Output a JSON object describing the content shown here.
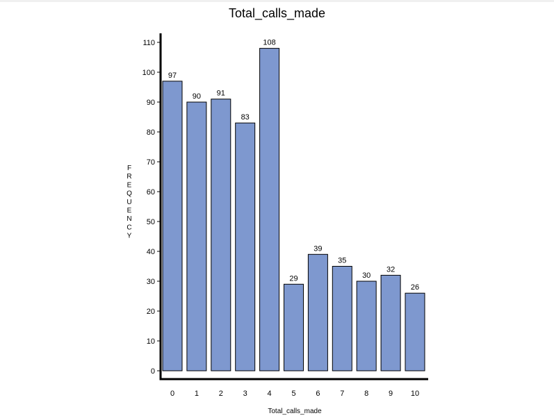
{
  "chart_data": {
    "type": "bar",
    "title": "Total_calls_made",
    "xlabel": "Total_calls_made",
    "ylabel": "FREQUENCY",
    "categories": [
      "0",
      "1",
      "2",
      "3",
      "4",
      "5",
      "6",
      "7",
      "8",
      "9",
      "10"
    ],
    "values": [
      97,
      90,
      91,
      83,
      108,
      29,
      39,
      35,
      30,
      32,
      26
    ],
    "ylim": [
      0,
      110
    ],
    "yticks": [
      0,
      10,
      20,
      30,
      40,
      50,
      60,
      70,
      80,
      90,
      100,
      110
    ],
    "grid": false,
    "bar_color": "#7e98cf"
  }
}
